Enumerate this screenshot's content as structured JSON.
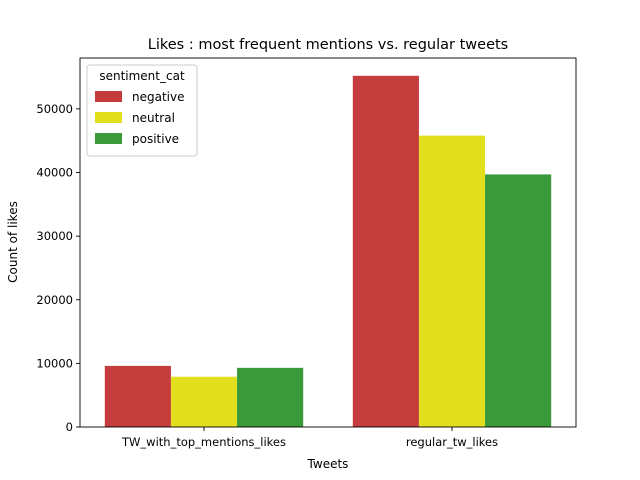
{
  "chart_data": {
    "type": "bar",
    "title": "Likes : most frequent mentions vs. regular tweets",
    "xlabel": "Tweets",
    "ylabel": "Count of likes",
    "categories": [
      "TW_with_top_mentions_likes",
      "regular_tw_likes"
    ],
    "series": [
      {
        "name": "negative",
        "color": "#c43c3c",
        "values": [
          9600,
          55200
        ]
      },
      {
        "name": "neutral",
        "color": "#e2e01e",
        "values": [
          7900,
          45800
        ]
      },
      {
        "name": "positive",
        "color": "#3a9a3a",
        "values": [
          9300,
          39700
        ]
      }
    ],
    "ylim": [
      0,
      58000
    ],
    "yticks": [
      0,
      10000,
      20000,
      30000,
      40000,
      50000
    ],
    "ytick_labels": [
      "0",
      "10000",
      "20000",
      "30000",
      "40000",
      "50000"
    ],
    "grid": false,
    "legend": {
      "title": "sentiment_cat",
      "placement": "top-left"
    }
  }
}
